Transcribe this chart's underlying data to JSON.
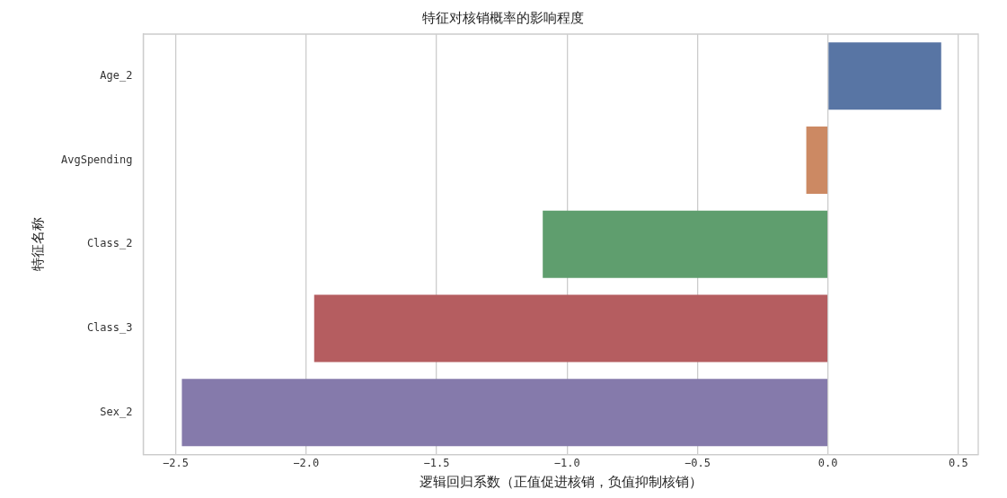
{
  "chart_data": {
    "type": "bar",
    "orientation": "horizontal",
    "title": "特征对核销概率的影响程度",
    "xlabel": "逻辑回归系数（正值促进核销，负值抑制核销）",
    "ylabel": "特征名称",
    "categories": [
      "Age_2",
      "AvgSpending",
      "Class_2",
      "Class_3",
      "Sex_2"
    ],
    "values": [
      0.434,
      -0.083,
      -1.093,
      -1.969,
      -2.476
    ],
    "colors": [
      "#5875a4",
      "#cc8963",
      "#5f9e6e",
      "#b55d60",
      "#857aab"
    ],
    "xlim": [
      -2.624,
      0.576
    ],
    "xticks": [
      {
        "value": -2.5,
        "label": "−2.5"
      },
      {
        "value": -2.0,
        "label": "−2.0"
      },
      {
        "value": -1.5,
        "label": "−1.5"
      },
      {
        "value": -1.0,
        "label": "−1.0"
      },
      {
        "value": -0.5,
        "label": "−0.5"
      },
      {
        "value": 0.0,
        "label": "0.0"
      },
      {
        "value": 0.5,
        "label": "0.5"
      }
    ],
    "grid": "x",
    "legend": false
  }
}
